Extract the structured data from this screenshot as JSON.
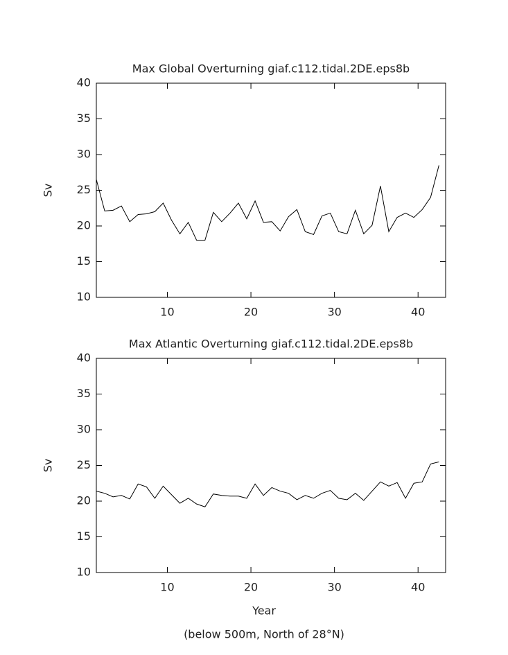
{
  "chart_data": [
    {
      "type": "line",
      "title": "Max Global Overturning giaf.c112.tidal.2DE.eps8b",
      "ylabel": "Sv",
      "x": [
        1.5,
        2.5,
        3.5,
        4.5,
        5.5,
        6.5,
        7.5,
        8.5,
        9.5,
        10.5,
        11.5,
        12.5,
        13.5,
        14.5,
        15.5,
        16.5,
        17.5,
        18.5,
        19.5,
        20.5,
        21.5,
        22.5,
        23.5,
        24.5,
        25.5,
        26.5,
        27.5,
        28.5,
        29.5,
        30.5,
        31.5,
        32.5,
        33.5,
        34.5,
        35.5,
        36.5,
        37.5,
        38.5,
        39.5,
        40.5,
        41.5,
        42.5
      ],
      "values": [
        26.5,
        22.1,
        22.2,
        22.8,
        20.6,
        21.6,
        21.7,
        22.0,
        23.2,
        20.8,
        18.9,
        20.5,
        18.0,
        18.0,
        21.9,
        20.6,
        21.8,
        23.2,
        21.0,
        23.5,
        20.5,
        20.6,
        19.3,
        21.3,
        22.3,
        19.2,
        18.8,
        21.4,
        21.8,
        19.2,
        18.9,
        22.2,
        18.9,
        20.1,
        25.6,
        19.2,
        21.2,
        21.8,
        21.2,
        22.3,
        24.0,
        28.5
      ],
      "color": "#000000",
      "xlim": [
        1.5,
        43.3
      ],
      "ylim": [
        10,
        40
      ],
      "xticks": [
        10,
        20,
        30,
        40
      ],
      "yticks": [
        10,
        15,
        20,
        25,
        30,
        35,
        40
      ]
    },
    {
      "type": "line",
      "title": "Max Atlantic Overturning giaf.c112.tidal.2DE.eps8b",
      "ylabel": "Sv",
      "xlabel": "Year",
      "note": "(below 500m, North of 28°N)",
      "x": [
        1.5,
        2.5,
        3.5,
        4.5,
        5.5,
        6.5,
        7.5,
        8.5,
        9.5,
        10.5,
        11.5,
        12.5,
        13.5,
        14.5,
        15.5,
        16.5,
        17.5,
        18.5,
        19.5,
        20.5,
        21.5,
        22.5,
        23.5,
        24.5,
        25.5,
        26.5,
        27.5,
        28.5,
        29.5,
        30.5,
        31.5,
        32.5,
        33.5,
        34.5,
        35.5,
        36.5,
        37.5,
        38.5,
        39.5,
        40.5,
        41.5,
        42.5
      ],
      "values": [
        21.4,
        21.1,
        20.6,
        20.8,
        20.3,
        22.4,
        22.0,
        20.4,
        22.1,
        20.9,
        19.7,
        20.4,
        19.6,
        19.2,
        21.0,
        20.8,
        20.7,
        20.7,
        20.4,
        22.4,
        20.8,
        21.9,
        21.4,
        21.1,
        20.2,
        20.8,
        20.4,
        21.1,
        21.5,
        20.4,
        20.2,
        21.1,
        20.1,
        21.4,
        22.7,
        22.1,
        22.6,
        20.4,
        22.5,
        22.7,
        25.2,
        25.5
      ],
      "color": "#000000",
      "xlim": [
        1.5,
        43.3
      ],
      "ylim": [
        10,
        40
      ],
      "xticks": [
        10,
        20,
        30,
        40
      ],
      "yticks": [
        10,
        15,
        20,
        25,
        30,
        35,
        40
      ]
    }
  ]
}
